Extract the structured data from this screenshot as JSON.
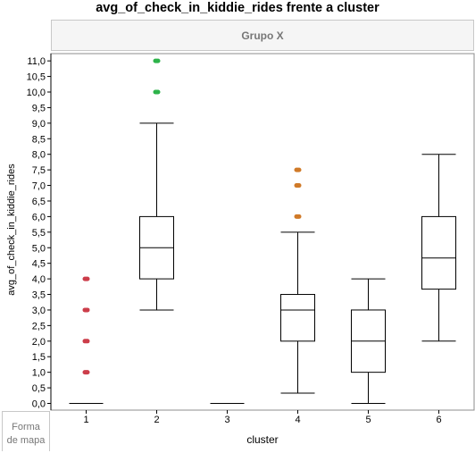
{
  "chart_data": {
    "type": "boxplot",
    "title": "avg_of_check_in_kiddie_rides frente a cluster",
    "group_header": "Grupo X",
    "xlabel": "cluster",
    "ylabel": "avg_of_check_in_kiddie_rides",
    "footer_label_line1": "Forma",
    "footer_label_line2": "de mapa",
    "ylim": [
      0,
      11.4
    ],
    "yticks": [
      "0,0",
      "0,5",
      "1,0",
      "1,5",
      "2,0",
      "2,5",
      "3,0",
      "3,5",
      "4,0",
      "4,5",
      "5,0",
      "5,5",
      "6,0",
      "6,5",
      "7,0",
      "7,5",
      "8,0",
      "8,5",
      "9,0",
      "9,5",
      "10,0",
      "10,5",
      "11,0"
    ],
    "categories": [
      "1",
      "2",
      "3",
      "4",
      "5",
      "6"
    ],
    "boxes": [
      {
        "cluster": "1",
        "whisker_low": 0,
        "q1": 0,
        "median": 0,
        "q3": 0,
        "whisker_high": 0,
        "outliers": [
          1,
          2,
          3,
          4
        ],
        "outlier_color": "#cc3d4a"
      },
      {
        "cluster": "2",
        "whisker_low": 3,
        "q1": 4,
        "median": 5,
        "q3": 6,
        "whisker_high": 9,
        "outliers": [
          10,
          11
        ],
        "outlier_color": "#2db34a"
      },
      {
        "cluster": "3",
        "whisker_low": 0,
        "q1": 0,
        "median": 0,
        "q3": 0,
        "whisker_high": 0,
        "outliers": [],
        "outlier_color": "#000000"
      },
      {
        "cluster": "4",
        "whisker_low": 0.33,
        "q1": 2,
        "median": 3,
        "q3": 3.5,
        "whisker_high": 5.5,
        "outliers": [
          6,
          7,
          7.5
        ],
        "outlier_color": "#d07a28"
      },
      {
        "cluster": "5",
        "whisker_low": 0,
        "q1": 1,
        "median": 2,
        "q3": 3,
        "whisker_high": 4,
        "outliers": [],
        "outlier_color": "#000000"
      },
      {
        "cluster": "6",
        "whisker_low": 2,
        "q1": 3.67,
        "median": 4.67,
        "q3": 6,
        "whisker_high": 8,
        "outliers": [],
        "outlier_color": "#000000"
      }
    ],
    "grid": false,
    "legend": "none"
  }
}
